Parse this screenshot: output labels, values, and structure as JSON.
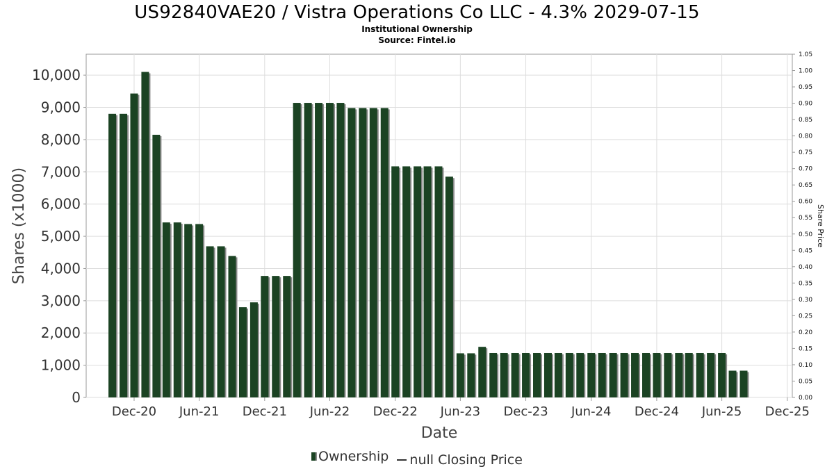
{
  "title": "US92840VAE20 / Vistra Operations Co LLC - 4.3% 2029-07-15",
  "subtitle_1": "Institutional Ownership",
  "subtitle_2": "Source: Fintel.io",
  "legend": {
    "ownership": "Ownership",
    "price": "null Closing Price"
  },
  "colors": {
    "bar": "#1b4323",
    "bar_shadow": "#8a8a8a",
    "grid": "#dddddd",
    "frame": "#999999"
  },
  "chart_data": {
    "type": "bar",
    "xlabel": "Date",
    "ylabel": "Shares (x1000)",
    "ylabel_right": "Share Price",
    "ylim": [
      0,
      10650
    ],
    "ylim_right": [
      0,
      1.05
    ],
    "xlim": [
      "2020-07-20",
      "2025-12-15"
    ],
    "grid": true,
    "legend_position": "bottom",
    "y_ticks": [
      0,
      1000,
      2000,
      3000,
      4000,
      5000,
      6000,
      7000,
      8000,
      9000,
      10000
    ],
    "y_tick_labels": [
      "0",
      "1,000",
      "2,000",
      "3,000",
      "4,000",
      "5,000",
      "6,000",
      "7,000",
      "8,000",
      "9,000",
      "10,000"
    ],
    "y_right_ticks": [
      0,
      0.05,
      0.1,
      0.15,
      0.2,
      0.25,
      0.3,
      0.35,
      0.4,
      0.45,
      0.5,
      0.55,
      0.6,
      0.65,
      0.7,
      0.75,
      0.8,
      0.85,
      0.9,
      0.95,
      1.0,
      1.05
    ],
    "y_right_tick_labels": [
      "0.00",
      "0.05",
      "0.10",
      "0.15",
      "0.20",
      "0.25",
      "0.30",
      "0.35",
      "0.40",
      "0.45",
      "0.50",
      "0.55",
      "0.60",
      "0.65",
      "0.70",
      "0.75",
      "0.80",
      "0.85",
      "0.90",
      "0.95",
      "1.00",
      "1.05"
    ],
    "x_ticks": [
      "2020-12-01",
      "2021-06-01",
      "2021-12-01",
      "2022-06-01",
      "2022-12-01",
      "2023-06-01",
      "2023-12-01",
      "2024-06-01",
      "2024-12-01",
      "2025-06-01",
      "2025-12-01"
    ],
    "x_tick_labels": [
      "Dec-20",
      "Jun-21",
      "Dec-21",
      "Jun-22",
      "Dec-22",
      "Jun-23",
      "Dec-23",
      "Jun-24",
      "Dec-24",
      "Jun-25",
      "Dec-25"
    ],
    "series": [
      {
        "name": "Ownership",
        "dates": [
          "2020-10-01",
          "2020-11-01",
          "2020-12-01",
          "2021-01-01",
          "2021-02-01",
          "2021-03-01",
          "2021-04-01",
          "2021-05-01",
          "2021-06-01",
          "2021-07-01",
          "2021-08-01",
          "2021-09-01",
          "2021-10-01",
          "2021-11-01",
          "2021-12-01",
          "2022-01-01",
          "2022-02-01",
          "2022-03-01",
          "2022-04-01",
          "2022-05-01",
          "2022-06-01",
          "2022-07-01",
          "2022-08-01",
          "2022-09-01",
          "2022-10-01",
          "2022-11-01",
          "2022-12-01",
          "2023-01-01",
          "2023-02-01",
          "2023-03-01",
          "2023-04-01",
          "2023-05-01",
          "2023-06-01",
          "2023-07-01",
          "2023-08-01",
          "2023-09-01",
          "2023-10-01",
          "2023-11-01",
          "2023-12-01",
          "2024-01-01",
          "2024-02-01",
          "2024-03-01",
          "2024-04-01",
          "2024-05-01",
          "2024-06-01",
          "2024-07-01",
          "2024-08-01",
          "2024-09-01",
          "2024-10-01",
          "2024-11-01",
          "2024-12-01",
          "2025-01-01",
          "2025-02-01",
          "2025-03-01",
          "2025-04-01",
          "2025-05-01",
          "2025-06-01",
          "2025-07-01",
          "2025-08-01"
        ],
        "values": [
          8800,
          8800,
          9430,
          10100,
          8150,
          5430,
          5430,
          5380,
          5380,
          4690,
          4690,
          4390,
          2800,
          2950,
          3770,
          3770,
          3770,
          9140,
          9140,
          9140,
          9140,
          9140,
          8980,
          8980,
          8980,
          8980,
          7170,
          7170,
          7170,
          7170,
          7170,
          6850,
          1370,
          1370,
          1570,
          1380,
          1380,
          1380,
          1380,
          1380,
          1380,
          1380,
          1380,
          1380,
          1380,
          1380,
          1380,
          1380,
          1380,
          1380,
          1380,
          1380,
          1380,
          1380,
          1380,
          1380,
          1380,
          830,
          830
        ]
      }
    ]
  }
}
